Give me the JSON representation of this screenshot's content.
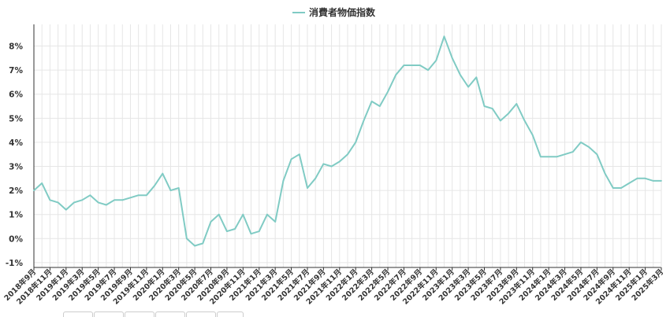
{
  "chart_data": {
    "type": "line",
    "series": [
      {
        "name": "消費者物価指数",
        "color": "#80cbc4",
        "values": [
          2.0,
          2.3,
          1.6,
          1.5,
          1.2,
          1.5,
          1.6,
          1.8,
          1.5,
          1.4,
          1.6,
          1.6,
          1.7,
          1.8,
          1.8,
          2.2,
          2.7,
          2.0,
          2.1,
          0.0,
          -0.3,
          -0.2,
          0.7,
          1.0,
          0.3,
          0.4,
          1.0,
          0.2,
          0.3,
          1.0,
          0.7,
          2.4,
          3.3,
          3.5,
          2.1,
          2.5,
          3.1,
          3.0,
          3.2,
          3.5,
          4.0,
          4.9,
          5.7,
          5.5,
          6.1,
          6.8,
          7.2,
          7.2,
          7.2,
          7.0,
          7.4,
          8.4,
          7.5,
          6.8,
          6.3,
          6.7,
          5.5,
          5.4,
          4.9,
          5.2,
          5.6,
          4.9,
          4.3,
          3.4,
          3.4,
          3.4,
          3.5,
          3.6,
          4.0,
          3.8,
          3.5,
          2.7,
          2.1,
          2.1,
          2.3,
          2.5,
          2.5,
          2.4,
          2.4
        ]
      }
    ],
    "x": [
      "2018年9月",
      "2018年10月",
      "2018年11月",
      "2018年12月",
      "2019年1月",
      "2019年2月",
      "2019年3月",
      "2019年4月",
      "2019年5月",
      "2019年6月",
      "2019年7月",
      "2019年8月",
      "2019年9月",
      "2019年10月",
      "2019年11月",
      "2019年12月",
      "2020年1月",
      "2020年2月",
      "2020年3月",
      "2020年4月",
      "2020年5月",
      "2020年6月",
      "2020年7月",
      "2020年8月",
      "2020年9月",
      "2020年10月",
      "2020年11月",
      "2020年12月",
      "2021年1月",
      "2021年2月",
      "2021年3月",
      "2021年4月",
      "2021年5月",
      "2021年6月",
      "2021年7月",
      "2021年8月",
      "2021年9月",
      "2021年10月",
      "2021年11月",
      "2021年12月",
      "2022年1月",
      "2022年2月",
      "2022年3月",
      "2022年4月",
      "2022年5月",
      "2022年6月",
      "2022年7月",
      "2022年8月",
      "2022年9月",
      "2022年10月",
      "2022年11月",
      "2022年12月",
      "2023年1月",
      "2023年2月",
      "2023年3月",
      "2023年4月",
      "2023年5月",
      "2023年6月",
      "2023年7月",
      "2023年8月",
      "2023年9月",
      "2023年10月",
      "2023年11月",
      "2023年12月",
      "2024年1月",
      "2024年2月",
      "2024年3月",
      "2024年4月",
      "2024年5月",
      "2024年6月",
      "2024年7月",
      "2024年8月",
      "2024年9月",
      "2024年10月",
      "2024年11月",
      "2024年12月",
      "2025年1月",
      "2025年2月",
      "2025年3月"
    ],
    "x_tick_labels": [
      "2018年9月",
      "2018年11月",
      "2019年1月",
      "2019年3月",
      "2019年5月",
      "2019年7月",
      "2019年9月",
      "2019年11月",
      "2020年1月",
      "2020年3月",
      "2020年5月",
      "2020年7月",
      "2020年9月",
      "2020年11月",
      "2021年1月",
      "2021年3月",
      "2021年5月",
      "2021年7月",
      "2021年9月",
      "2021年11月",
      "2022年1月",
      "2022年3月",
      "2022年5月",
      "2022年7月",
      "2022年9月",
      "2022年11月",
      "2023年1月",
      "2023年3月",
      "2023年5月",
      "2023年7月",
      "2023年9月",
      "2023年11月",
      "2024年1月",
      "2024年3月",
      "2024年5月",
      "2024年7月",
      "2024年9月",
      "2024年11月",
      "2025年1月",
      "2025年3月"
    ],
    "y_tick_labels": [
      "-1%",
      "0%",
      "1%",
      "2%",
      "3%",
      "4%",
      "5%",
      "6%",
      "7%",
      "8%"
    ],
    "y_ticks": [
      -1,
      0,
      1,
      2,
      3,
      4,
      5,
      6,
      7,
      8
    ],
    "ylim": [
      -1.2,
      8.9
    ],
    "title": "",
    "xlabel": "",
    "ylabel": "",
    "grid": true,
    "legend": "top-center"
  }
}
